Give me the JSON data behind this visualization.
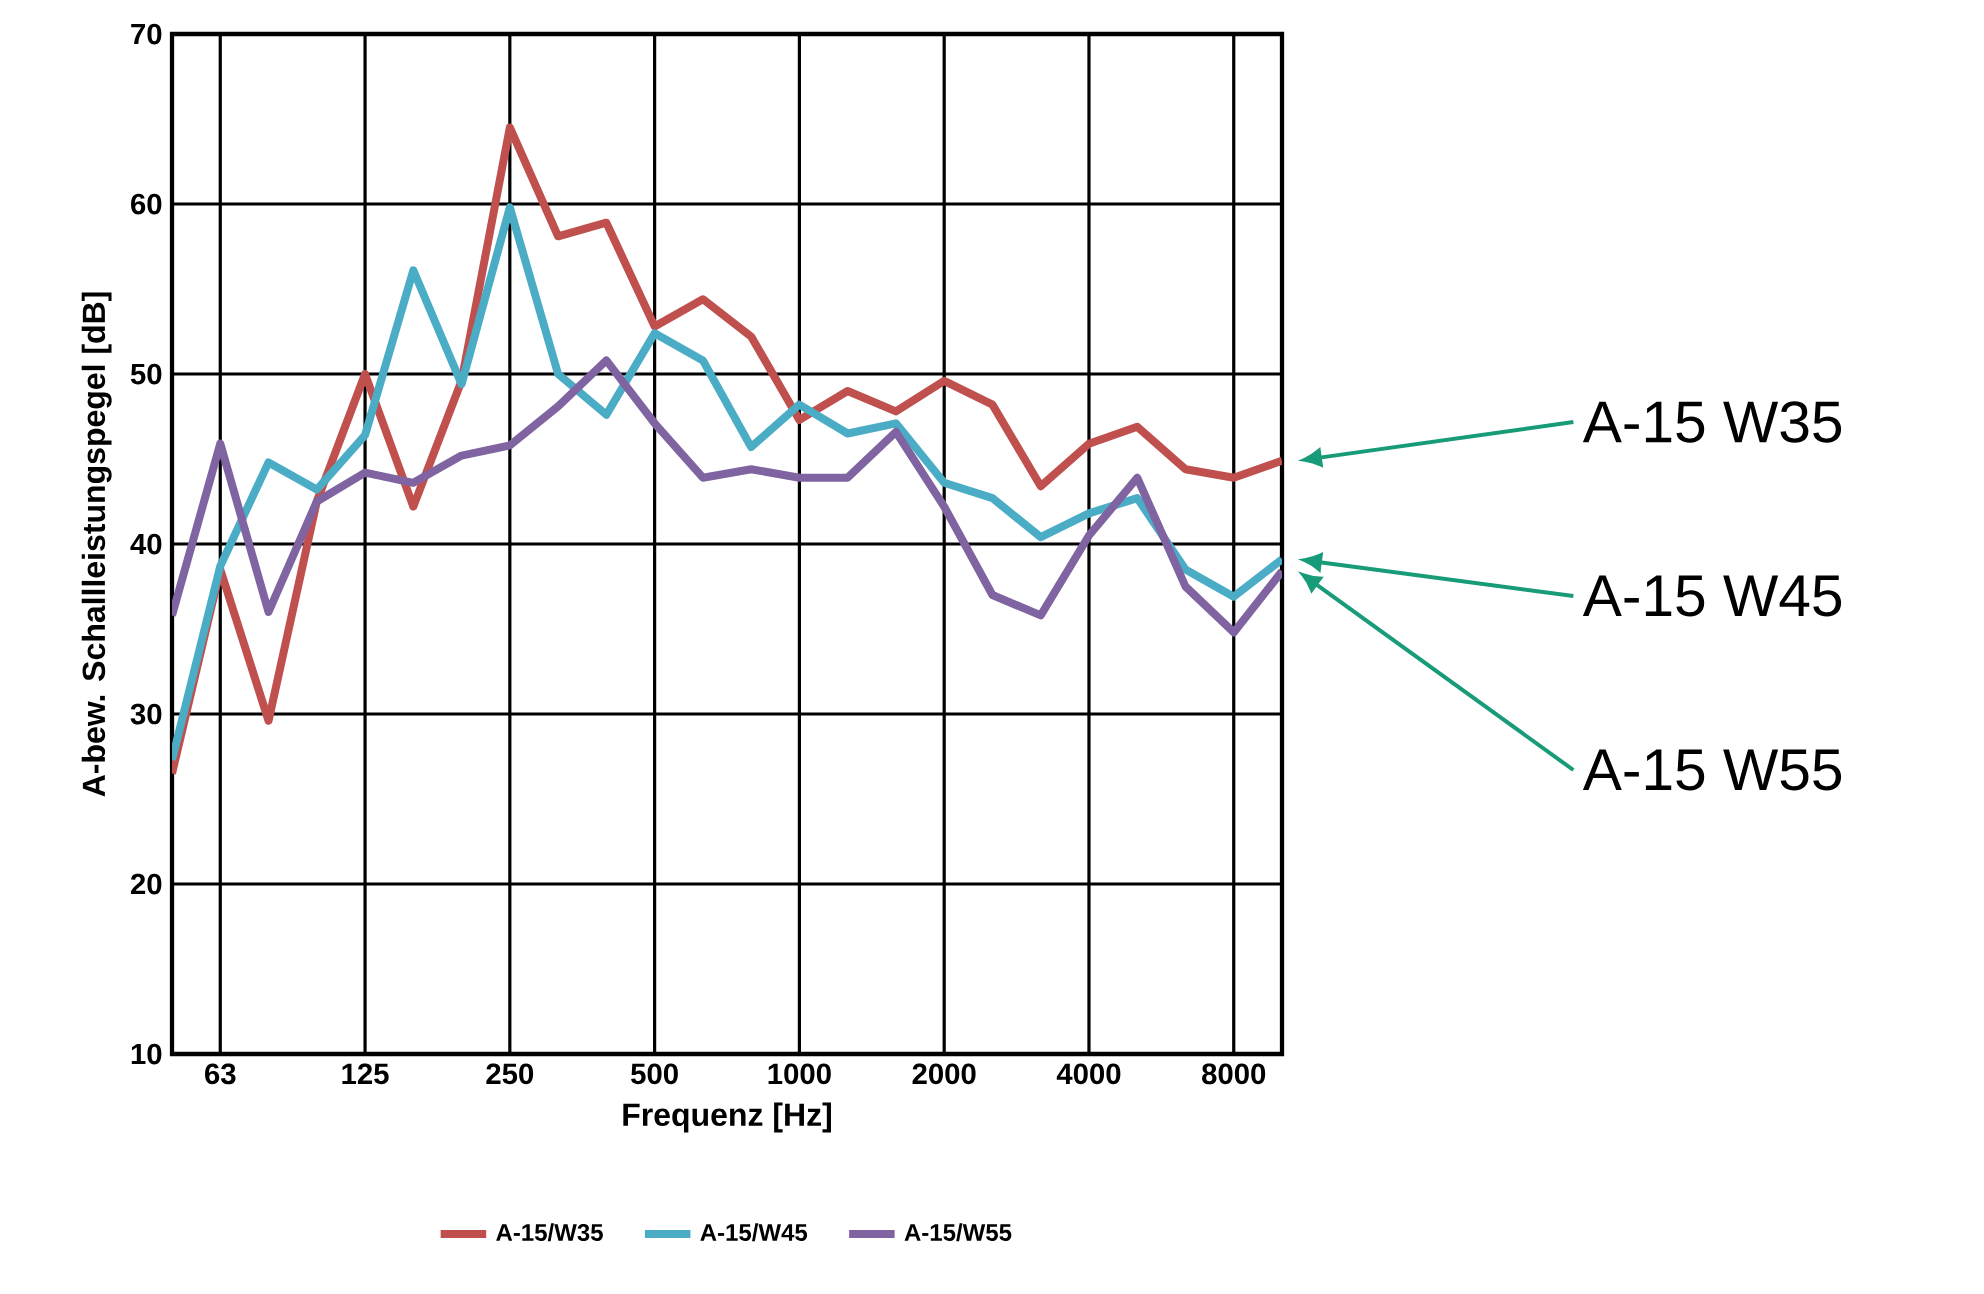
{
  "chart_data": {
    "type": "line",
    "xlabel": "Frequenz [Hz]",
    "ylabel": "A-bew. Schallleistungspegel [dB]",
    "categories": [
      null,
      "63",
      null,
      null,
      "125",
      null,
      null,
      "250",
      null,
      null,
      "500",
      null,
      null,
      "1000",
      null,
      null,
      "2000",
      null,
      null,
      "4000",
      null,
      null,
      "8000",
      null
    ],
    "ylim": [
      10,
      70
    ],
    "yticks": [
      10,
      20,
      30,
      40,
      50,
      60,
      70
    ],
    "grid": true,
    "legend": "bottom",
    "marker": "none",
    "line_style": "solid",
    "series": [
      {
        "name": "A-15/W35",
        "color": "#c0504d",
        "values": [
          26.5,
          38.5,
          29.6,
          42.5,
          50.0,
          42.2,
          49.6,
          64.5,
          58.1,
          58.9,
          52.8,
          54.4,
          52.2,
          47.3,
          49.0,
          47.8,
          49.6,
          48.2,
          43.4,
          45.9,
          46.9,
          44.4,
          43.9,
          44.9
        ]
      },
      {
        "name": "A-15/W45",
        "color": "#4bacc6",
        "values": [
          27.3,
          38.7,
          44.8,
          43.2,
          46.4,
          56.1,
          49.4,
          59.8,
          50.0,
          47.6,
          52.4,
          50.8,
          45.7,
          48.2,
          46.5,
          47.1,
          43.6,
          42.7,
          40.4,
          41.8,
          42.7,
          38.5,
          36.9,
          39.1
        ]
      },
      {
        "name": "A-15/W55",
        "color": "#8064a2",
        "values": [
          35.8,
          45.9,
          36.0,
          42.5,
          44.2,
          43.6,
          45.2,
          45.8,
          48.1,
          50.8,
          47.1,
          43.9,
          44.4,
          43.9,
          43.9,
          46.6,
          42.2,
          37.0,
          35.8,
          40.5,
          43.9,
          37.5,
          34.8,
          38.4
        ]
      }
    ],
    "annotations": [
      "A-15 W35",
      "A-15 W45",
      "A-15 W55"
    ]
  }
}
